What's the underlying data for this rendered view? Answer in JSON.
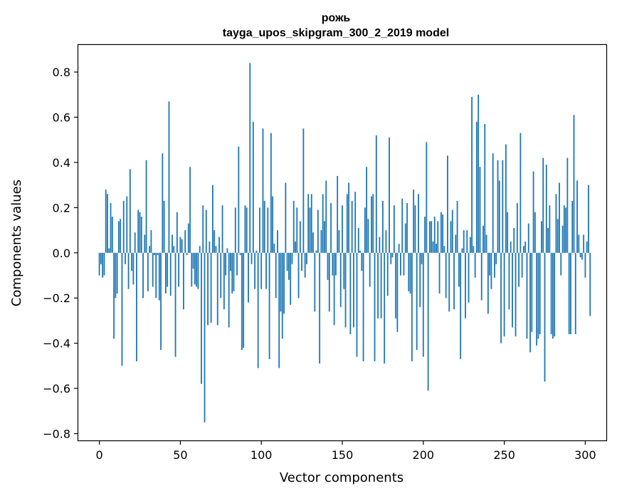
{
  "chart_data": {
    "type": "bar",
    "title": "рожь",
    "subtitle": "tayga_upos_skipgram_300_2_2019 model",
    "xlabel": "Vector components",
    "ylabel": "Components values",
    "xlim": [
      -13,
      313
    ],
    "ylim": [
      -0.83,
      0.92
    ],
    "xticks": [
      0,
      50,
      100,
      150,
      200,
      250,
      300
    ],
    "yticks": [
      -0.8,
      -0.6,
      -0.4,
      -0.2,
      0.0,
      0.2,
      0.4,
      0.6,
      0.8
    ],
    "ytick_labels": [
      "−0.8",
      "−0.6",
      "−0.4",
      "−0.2",
      "0.0",
      "0.2",
      "0.4",
      "0.6",
      "0.8"
    ],
    "bar_color": "#1f77b4",
    "grid": false,
    "values": [
      -0.1,
      -0.05,
      -0.11,
      -0.1,
      0.28,
      0.26,
      0.02,
      0.22,
      0.16,
      -0.38,
      -0.2,
      -0.18,
      0.14,
      0.15,
      -0.5,
      0.23,
      -0.05,
      0.25,
      -0.16,
      0.37,
      -0.08,
      -0.14,
      0.09,
      -0.48,
      0.19,
      0.18,
      0.16,
      -0.2,
      0.08,
      0.41,
      -0.17,
      0.03,
      0.1,
      -0.15,
      -0.01,
      -0.2,
      -0.01,
      -0.21,
      -0.43,
      0.44,
      0.23,
      -0.18,
      -0.15,
      0.67,
      -0.19,
      0.08,
      0.03,
      -0.46,
      0.18,
      -0.15,
      0.07,
      0.06,
      -0.25,
      0.1,
      -0.01,
      0.13,
      0.38,
      -0.15,
      -0.07,
      -0.14,
      -0.15,
      -0.16,
      0.03,
      -0.58,
      0.21,
      -0.75,
      0.19,
      -0.32,
      0.05,
      -0.31,
      0.3,
      0.1,
      0.03,
      -0.32,
      0.07,
      -0.2,
      0.21,
      -0.25,
      -0.1,
      0.02,
      -0.33,
      -0.08,
      -0.18,
      -0.17,
      0.2,
      -0.1,
      0.47,
      -0.01,
      -0.43,
      -0.42,
      0.21,
      0.2,
      -0.22,
      0.84,
      -0.05,
      0.58,
      -0.16,
      0.01,
      -0.51,
      0.2,
      -0.16,
      0.55,
      0.23,
      -0.16,
      0.2,
      -0.47,
      0.53,
      0.25,
      0.04,
      -0.2,
      0.1,
      -0.51,
      -0.26,
      -0.38,
      -0.27,
      0.31,
      -0.08,
      -0.12,
      -0.23,
      -0.05,
      0.23,
      0.05,
      0.2,
      -0.2,
      0.14,
      -0.08,
      0.55,
      -0.11,
      -0.05,
      0.26,
      0.2,
      0.26,
      0.09,
      -0.26,
      0.01,
      0.19,
      -0.49,
      0.1,
      0.26,
      0.14,
      0.32,
      -0.12,
      -0.26,
      0.22,
      -0.1,
      -0.32,
      -0.1,
      0.34,
      0.1,
      -0.24,
      0.21,
      -0.16,
      -0.33,
      0.26,
      0.31,
      -0.36,
      0.23,
      -0.33,
      0.27,
      -0.46,
      0.11,
      0.01,
      -0.08,
      -0.48,
      0.2,
      0.38,
      0.15,
      -0.15,
      0.25,
      0.26,
      -0.48,
      0.52,
      -0.29,
      0.07,
      -0.29,
      0.23,
      -0.49,
      0.1,
      -0.19,
      0.51,
      -0.05,
      -0.02,
      0.21,
      -0.29,
      -0.35,
      0.04,
      -0.1,
      0.24,
      -0.1,
      0.13,
      0.22,
      -0.17,
      -0.18,
      -0.48,
      0.28,
      0.21,
      -0.43,
      0.26,
      -0.24,
      -0.05,
      -0.46,
      0.16,
      0.49,
      -0.61,
      0.14,
      0.14,
      0.05,
      0.16,
      0.04,
      0.14,
      -0.18,
      0.18,
      0.17,
      0.03,
      -0.2,
      0.43,
      -0.26,
      0.14,
      0.19,
      -0.25,
      0.08,
      0.23,
      -0.15,
      -0.47,
      0.02,
      0.1,
      -0.29,
      0.1,
      -0.22,
      0.07,
      0.69,
      0.03,
      -0.11,
      0.58,
      0.7,
      0.38,
      -0.21,
      0.12,
      0.57,
      0.08,
      -0.27,
      -0.1,
      -0.16,
      0.44,
      -0.11,
      -0.05,
      0.41,
      0.32,
      -0.4,
      0.41,
      -0.37,
      0.48,
      0.18,
      -0.25,
      0.05,
      -0.33,
      0.11,
      -0.37,
      0.22,
      -0.15,
      0.53,
      -0.11,
      0.03,
      0.05,
      -0.38,
      0.13,
      -0.44,
      -0.35,
      0.36,
      0.18,
      -0.41,
      -0.38,
      -0.36,
      0.14,
      0.42,
      -0.57,
      0.39,
      0.11,
      0.21,
      -0.36,
      -0.38,
      -0.37,
      0.26,
      0.15,
      0.31,
      -0.1,
      0.12,
      0.21,
      0.2,
      0.42,
      -0.36,
      -0.36,
      0.23,
      0.61,
      -0.36,
      0.32,
      0.08,
      -0.02,
      -0.03,
      0.08,
      -0.11,
      0.05,
      0.3,
      -0.28
    ]
  }
}
